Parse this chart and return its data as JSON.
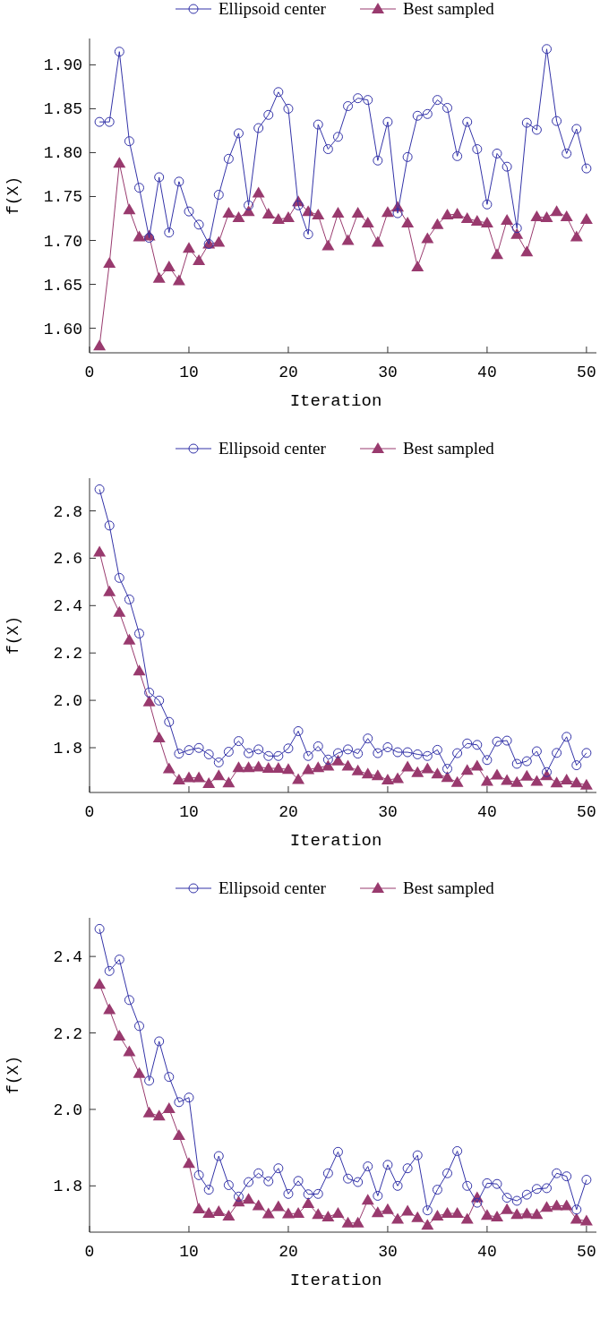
{
  "chart_data": [
    {
      "type": "line",
      "x": [
        1,
        2,
        3,
        4,
        5,
        6,
        7,
        8,
        9,
        10,
        11,
        12,
        13,
        14,
        15,
        16,
        17,
        18,
        19,
        20,
        21,
        22,
        23,
        24,
        25,
        26,
        27,
        28,
        29,
        30,
        31,
        32,
        33,
        34,
        35,
        36,
        37,
        38,
        39,
        40,
        41,
        42,
        43,
        44,
        45,
        46,
        47,
        48,
        49,
        50
      ],
      "xlabel": "Iteration",
      "ylabel": "f(X)",
      "xlim": [
        0,
        51
      ],
      "xticks": [
        0,
        10,
        20,
        30,
        40,
        50
      ],
      "ylim": [
        1.572,
        1.93
      ],
      "yticks": [
        {
          "value": 1.6,
          "label": "1.60"
        },
        {
          "value": 1.65,
          "label": "1.65"
        },
        {
          "value": 1.7,
          "label": "1.70"
        },
        {
          "value": 1.75,
          "label": "1.75"
        },
        {
          "value": 1.8,
          "label": "1.80"
        },
        {
          "value": 1.85,
          "label": "1.85"
        },
        {
          "value": 1.9,
          "label": "1.90"
        }
      ],
      "legend": "top",
      "grid": false,
      "series": [
        {
          "name": "Ellipsoid center",
          "color": "#3333a8",
          "marker": "circle",
          "values": [
            1.835,
            1.835,
            1.915,
            1.813,
            1.76,
            1.703,
            1.772,
            1.709,
            1.767,
            1.733,
            1.718,
            1.696,
            1.752,
            1.793,
            1.822,
            1.74,
            1.828,
            1.843,
            1.869,
            1.85,
            1.74,
            1.707,
            1.832,
            1.804,
            1.818,
            1.853,
            1.862,
            1.86,
            1.791,
            1.835,
            1.731,
            1.795,
            1.842,
            1.844,
            1.86,
            1.851,
            1.796,
            1.835,
            1.804,
            1.741,
            1.799,
            1.784,
            1.714,
            1.834,
            1.826,
            1.918,
            1.836,
            1.799,
            1.827,
            1.782
          ]
        },
        {
          "name": "Best sampled",
          "color": "#993a6e",
          "marker": "triangle",
          "values": [
            1.58,
            1.674,
            1.788,
            1.735,
            1.704,
            1.705,
            1.657,
            1.67,
            1.654,
            1.691,
            1.677,
            1.696,
            1.698,
            1.731,
            1.726,
            1.733,
            1.754,
            1.73,
            1.724,
            1.726,
            1.744,
            1.733,
            1.729,
            1.694,
            1.731,
            1.7,
            1.731,
            1.72,
            1.698,
            1.732,
            1.738,
            1.72,
            1.67,
            1.702,
            1.718,
            1.729,
            1.73,
            1.725,
            1.722,
            1.72,
            1.684,
            1.723,
            1.707,
            1.687,
            1.727,
            1.726,
            1.733,
            1.727,
            1.704,
            1.724
          ]
        }
      ]
    },
    {
      "type": "line",
      "x": [
        1,
        2,
        3,
        4,
        5,
        6,
        7,
        8,
        9,
        10,
        11,
        12,
        13,
        14,
        15,
        16,
        17,
        18,
        19,
        20,
        21,
        22,
        23,
        24,
        25,
        26,
        27,
        28,
        29,
        30,
        31,
        32,
        33,
        34,
        35,
        36,
        37,
        38,
        39,
        40,
        41,
        42,
        43,
        44,
        45,
        46,
        47,
        48,
        49,
        50
      ],
      "xlabel": "Iteration",
      "ylabel": "f(X)",
      "xlim": [
        0,
        51
      ],
      "xticks": [
        0,
        10,
        20,
        30,
        40,
        50
      ],
      "ylim": [
        1.611,
        2.938
      ],
      "yticks": [
        1.8,
        {
          "value": 2.0,
          "label": "2.0"
        },
        2.2,
        2.4,
        2.6,
        2.8
      ],
      "legend": "top",
      "grid": false,
      "series": [
        {
          "name": "Ellipsoid center",
          "color": "#3333a8",
          "marker": "circle",
          "values": [
            2.891,
            2.738,
            2.517,
            2.426,
            2.282,
            2.033,
            1.999,
            1.909,
            1.775,
            1.79,
            1.799,
            1.772,
            1.738,
            1.783,
            1.828,
            1.777,
            1.793,
            1.765,
            1.765,
            1.797,
            1.87,
            1.765,
            1.806,
            1.75,
            1.777,
            1.793,
            1.775,
            1.839,
            1.777,
            1.802,
            1.781,
            1.781,
            1.772,
            1.765,
            1.791,
            1.711,
            1.777,
            1.818,
            1.812,
            1.748,
            1.826,
            1.83,
            1.732,
            1.743,
            1.785,
            1.697,
            1.778,
            1.846,
            1.726,
            1.778
          ]
        },
        {
          "name": "Best sampled",
          "color": "#993a6e",
          "marker": "triangle",
          "values": [
            2.626,
            2.459,
            2.372,
            2.255,
            2.124,
            1.994,
            1.842,
            1.711,
            1.664,
            1.673,
            1.673,
            1.649,
            1.682,
            1.652,
            1.716,
            1.716,
            1.719,
            1.713,
            1.713,
            1.708,
            1.666,
            1.707,
            1.716,
            1.723,
            1.744,
            1.723,
            1.703,
            1.689,
            1.682,
            1.664,
            1.67,
            1.719,
            1.695,
            1.711,
            1.689,
            1.674,
            1.654,
            1.705,
            1.723,
            1.658,
            1.685,
            1.662,
            1.654,
            1.68,
            1.658,
            1.682,
            1.652,
            1.664,
            1.652,
            1.642
          ]
        }
      ]
    },
    {
      "type": "line",
      "x": [
        1,
        2,
        3,
        4,
        5,
        6,
        7,
        8,
        9,
        10,
        11,
        12,
        13,
        14,
        15,
        16,
        17,
        18,
        19,
        20,
        21,
        22,
        23,
        24,
        25,
        26,
        27,
        28,
        29,
        30,
        31,
        32,
        33,
        34,
        35,
        36,
        37,
        38,
        39,
        40,
        41,
        42,
        43,
        44,
        45,
        46,
        47,
        48,
        49,
        50
      ],
      "xlabel": "Iteration",
      "ylabel": "f(X)",
      "xlim": [
        0,
        51
      ],
      "xticks": [
        0,
        10,
        20,
        30,
        40,
        50
      ],
      "ylim": [
        1.679,
        2.501
      ],
      "yticks": [
        1.8,
        {
          "value": 2.0,
          "label": "2.0"
        },
        2.2,
        2.4
      ],
      "legend": "top",
      "grid": false,
      "series": [
        {
          "name": "Ellipsoid center",
          "color": "#3333a8",
          "marker": "circle",
          "values": [
            2.472,
            2.362,
            2.392,
            2.286,
            2.218,
            2.075,
            2.178,
            2.085,
            2.019,
            2.031,
            1.828,
            1.79,
            1.878,
            1.802,
            1.772,
            1.81,
            1.833,
            1.812,
            1.846,
            1.779,
            1.813,
            1.778,
            1.779,
            1.833,
            1.889,
            1.819,
            1.81,
            1.851,
            1.774,
            1.855,
            1.8,
            1.846,
            1.88,
            1.736,
            1.79,
            1.833,
            1.891,
            1.8,
            1.756,
            1.807,
            1.805,
            1.769,
            1.761,
            1.777,
            1.792,
            1.794,
            1.833,
            1.825,
            1.738,
            1.816
          ]
        },
        {
          "name": "Best sampled",
          "color": "#993a6e",
          "marker": "triangle",
          "values": [
            2.327,
            2.261,
            2.192,
            2.151,
            2.094,
            1.991,
            1.983,
            2.002,
            1.932,
            1.859,
            1.74,
            1.728,
            1.733,
            1.721,
            1.758,
            1.765,
            1.748,
            1.727,
            1.746,
            1.727,
            1.728,
            1.754,
            1.725,
            1.719,
            1.728,
            1.703,
            1.703,
            1.763,
            1.73,
            1.738,
            1.713,
            1.734,
            1.717,
            1.697,
            1.721,
            1.728,
            1.728,
            1.713,
            1.769,
            1.723,
            1.719,
            1.738,
            1.725,
            1.727,
            1.725,
            1.744,
            1.748,
            1.748,
            1.713,
            1.708
          ]
        }
      ]
    }
  ]
}
